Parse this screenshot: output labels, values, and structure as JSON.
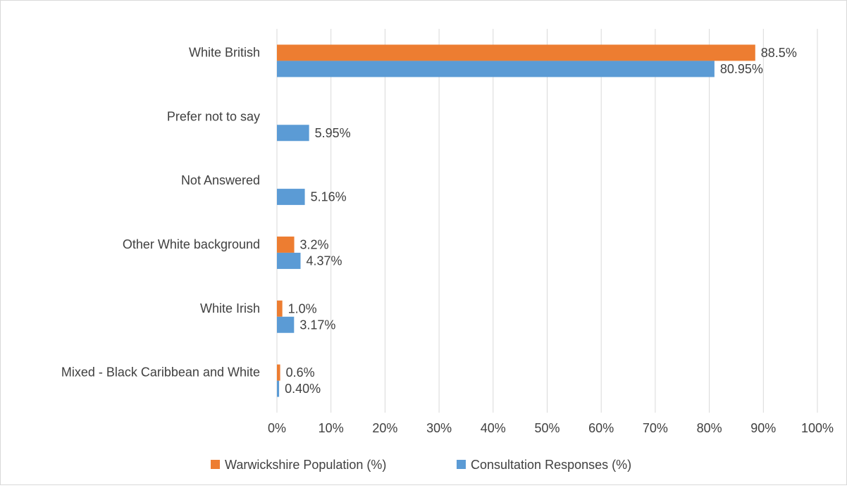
{
  "chart_data": {
    "type": "bar",
    "orientation": "horizontal",
    "title": "",
    "xlabel": "",
    "ylabel": "",
    "categories": [
      "White British",
      "Prefer not to say",
      "Not Answered",
      "Other White background",
      "White Irish",
      "Mixed - Black Caribbean and White"
    ],
    "series": [
      {
        "name": "Warwickshire Population (%)",
        "color": "#ed7d31",
        "values": [
          88.5,
          null,
          null,
          3.2,
          1.0,
          0.6
        ],
        "labels": [
          "88.5%",
          "",
          "",
          "3.2%",
          "1.0%",
          "0.6%"
        ]
      },
      {
        "name": "Consultation Responses (%)",
        "color": "#5b9bd5",
        "values": [
          80.95,
          5.95,
          5.16,
          4.37,
          3.17,
          0.4
        ],
        "labels": [
          "80.95%",
          "5.95%",
          "5.16%",
          "4.37%",
          "3.17%",
          "0.40%"
        ]
      }
    ],
    "xlim": [
      0,
      100
    ],
    "xticks": [
      "0%",
      "10%",
      "20%",
      "30%",
      "40%",
      "50%",
      "60%",
      "70%",
      "80%",
      "90%",
      "100%"
    ],
    "grid": true,
    "legend_position": "bottom"
  }
}
